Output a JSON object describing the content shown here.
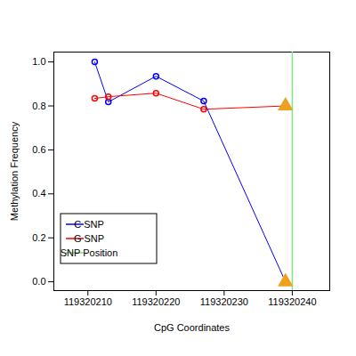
{
  "chart_data": {
    "type": "line",
    "x_label": "CpG Coordinates",
    "y_label": "Methylation Frequency",
    "xlim": [
      119320205,
      119320245.5
    ],
    "ylim": [
      -0.04,
      1.045
    ],
    "xticks": [
      119320210,
      119320220,
      119320230,
      119320240
    ],
    "yticks": [
      {
        "value": 0,
        "label": "0.0"
      },
      {
        "value": 0.2,
        "label": "0.2"
      },
      {
        "value": 0.4,
        "label": "0.4"
      },
      {
        "value": 0.6,
        "label": "0.6"
      },
      {
        "value": 0.8,
        "label": "0.8"
      },
      {
        "value": 1,
        "label": "1.0"
      }
    ],
    "grid": false,
    "legend": "lower left",
    "series": [
      {
        "name": "C SNP",
        "color": "#0000ff",
        "marker": "circle",
        "x": [
          119320211,
          119320213,
          119320220,
          119320227,
          119320239
        ],
        "values": [
          1.0,
          0.818,
          0.935,
          0.822,
          0.0
        ]
      },
      {
        "name": "G SNP",
        "color": "#ff0000",
        "marker": "circle",
        "x": [
          119320211,
          119320213,
          119320220,
          119320227,
          119320239
        ],
        "values": [
          0.834,
          0.842,
          0.858,
          0.785,
          0.8
        ]
      }
    ],
    "snp_position": {
      "name": "SNP Position",
      "x": 119320240,
      "color": "#7fe87f"
    },
    "snp_points": {
      "x": [
        119320239,
        119320239
      ],
      "values": [
        0.0,
        0.8
      ],
      "color": "#f0a020",
      "marker": "triangle"
    }
  }
}
